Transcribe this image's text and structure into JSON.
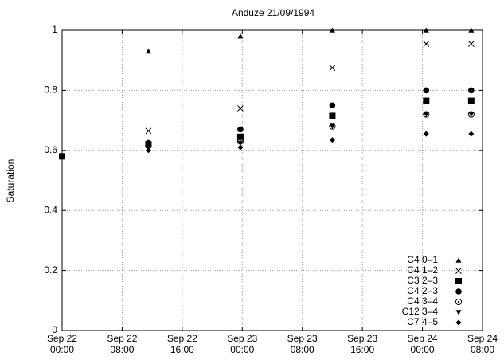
{
  "chart_data": {
    "type": "scatter",
    "title": "Anduze 21/09/1994",
    "y_label": "Saturation",
    "x": [
      0,
      11.5,
      23.75,
      36,
      48.5,
      54.5
    ],
    "xlim": [
      0,
      56
    ],
    "xticks": [
      {
        "value": 0,
        "label": "Sep 22\n00:00"
      },
      {
        "value": 8,
        "label": "Sep 22\n08:00"
      },
      {
        "value": 16,
        "label": "Sep 22\n16:00"
      },
      {
        "value": 24,
        "label": "Sep 23\n00:00"
      },
      {
        "value": 32,
        "label": "Sep 23\n08:00"
      },
      {
        "value": 40,
        "label": "Sep 23\n16:00"
      },
      {
        "value": 48,
        "label": "Sep 24\n00:00"
      },
      {
        "value": 56,
        "label": "Sep 24\n08:00"
      }
    ],
    "ylim": [
      0,
      1
    ],
    "yticks": [
      0,
      0.2,
      0.4,
      0.6,
      0.8,
      1
    ],
    "grid": true,
    "legend": "lower right",
    "series": [
      {
        "name": "C4 0–1",
        "marker": "triangle-up",
        "color": "#000000",
        "values": [
          null,
          0.93,
          0.98,
          1.0,
          1.0,
          1.0
        ]
      },
      {
        "name": "C4 1–2",
        "marker": "cross",
        "color": "#000000",
        "values": [
          null,
          0.665,
          0.74,
          0.875,
          0.955,
          0.955
        ]
      },
      {
        "name": "C3 2–3",
        "marker": "square",
        "color": "#000000",
        "values": [
          0.58,
          0.62,
          0.645,
          0.715,
          0.765,
          0.765
        ]
      },
      {
        "name": "C4 2–3",
        "marker": "circle",
        "color": "#000000",
        "values": [
          null,
          0.625,
          0.67,
          0.75,
          0.8,
          0.8
        ]
      },
      {
        "name": "C4 3–4",
        "marker": "dotted-circle",
        "color": "#000000",
        "values": [
          null,
          0.615,
          0.63,
          0.68,
          0.72,
          0.72
        ]
      },
      {
        "name": "C12 3–4",
        "marker": "triangle-down",
        "color": "#000000",
        "values": [
          null,
          0.61,
          0.625,
          0.68,
          0.72,
          0.72
        ]
      },
      {
        "name": "C7 4–5",
        "marker": "diamond",
        "color": "#000000",
        "values": [
          null,
          0.6,
          0.61,
          0.635,
          0.655,
          0.655
        ]
      }
    ]
  }
}
